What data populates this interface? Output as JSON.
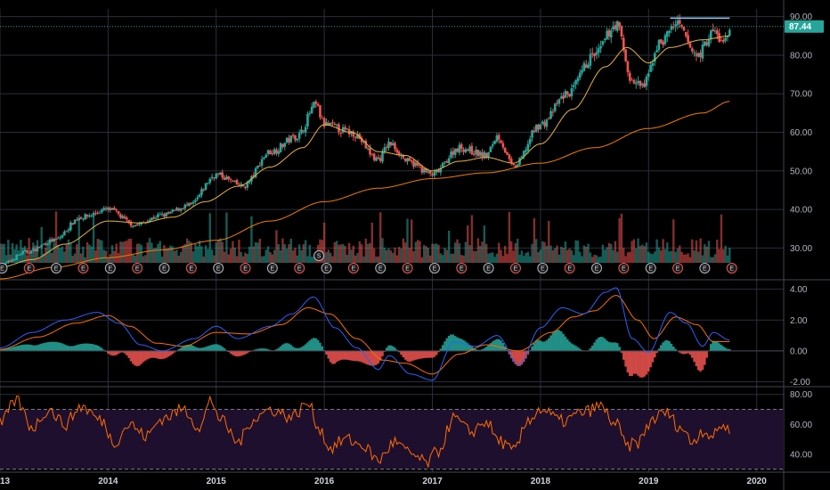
{
  "chart_data": [
    {
      "type": "candlestick",
      "panel": "price",
      "x_range": [
        2013.0,
        2020.25
      ],
      "ylim": [
        22,
        92
      ],
      "y_ticks": [
        "30.00",
        "40.00",
        "50.00",
        "60.00",
        "70.00",
        "80.00",
        "90.00"
      ],
      "y_tick_values": [
        30,
        40,
        50,
        60,
        70,
        80,
        90
      ],
      "last_price": 87.44,
      "last_price_label": "87.44",
      "resistance_line": {
        "y": 89.6,
        "x_start": 2019.2,
        "x_end": 2019.75
      },
      "price_anchors": [
        [
          2013.0,
          25.5
        ],
        [
          2013.25,
          29
        ],
        [
          2013.5,
          32
        ],
        [
          2013.75,
          38
        ],
        [
          2014.0,
          40
        ],
        [
          2014.25,
          36
        ],
        [
          2014.5,
          38.5
        ],
        [
          2014.75,
          41
        ],
        [
          2015.0,
          49
        ],
        [
          2015.25,
          46
        ],
        [
          2015.5,
          55
        ],
        [
          2015.75,
          59
        ],
        [
          2015.92,
          67
        ],
        [
          2016.0,
          62
        ],
        [
          2016.25,
          60
        ],
        [
          2016.5,
          53
        ],
        [
          2016.6,
          57
        ],
        [
          2016.8,
          52
        ],
        [
          2017.0,
          49
        ],
        [
          2017.25,
          56
        ],
        [
          2017.5,
          54
        ],
        [
          2017.6,
          59
        ],
        [
          2017.75,
          51
        ],
        [
          2018.0,
          62
        ],
        [
          2018.25,
          70
        ],
        [
          2018.5,
          80
        ],
        [
          2018.7,
          88
        ],
        [
          2018.85,
          73
        ],
        [
          2018.95,
          72
        ],
        [
          2019.1,
          83
        ],
        [
          2019.25,
          88
        ],
        [
          2019.45,
          80
        ],
        [
          2019.6,
          86
        ],
        [
          2019.7,
          83
        ],
        [
          2019.75,
          87.44
        ]
      ],
      "sma_fast_anchors": [
        [
          2013.0,
          25
        ],
        [
          2013.3,
          27
        ],
        [
          2013.6,
          31
        ],
        [
          2014.0,
          37
        ],
        [
          2014.3,
          36.5
        ],
        [
          2014.6,
          38
        ],
        [
          2014.9,
          42
        ],
        [
          2015.2,
          46
        ],
        [
          2015.5,
          51
        ],
        [
          2015.8,
          56
        ],
        [
          2016.0,
          62
        ],
        [
          2016.25,
          60
        ],
        [
          2016.5,
          55
        ],
        [
          2016.75,
          54
        ],
        [
          2017.0,
          50
        ],
        [
          2017.25,
          52.5
        ],
        [
          2017.5,
          53.5
        ],
        [
          2017.75,
          52
        ],
        [
          2018.0,
          57
        ],
        [
          2018.3,
          66
        ],
        [
          2018.6,
          77
        ],
        [
          2018.8,
          82
        ],
        [
          2019.0,
          78
        ],
        [
          2019.2,
          82
        ],
        [
          2019.5,
          84
        ],
        [
          2019.75,
          85
        ]
      ],
      "sma_slow_anchors": [
        [
          2013.0,
          22
        ],
        [
          2013.5,
          25
        ],
        [
          2014.0,
          27.5
        ],
        [
          2014.5,
          29.5
        ],
        [
          2015.0,
          32
        ],
        [
          2015.5,
          37
        ],
        [
          2016.0,
          42
        ],
        [
          2016.5,
          45.5
        ],
        [
          2017.0,
          48
        ],
        [
          2017.5,
          49.5
        ],
        [
          2018.0,
          52
        ],
        [
          2018.5,
          56
        ],
        [
          2019.0,
          61
        ],
        [
          2019.5,
          65
        ],
        [
          2019.75,
          68
        ]
      ],
      "earnings_marker_dates": [
        2013.02,
        2013.27,
        2013.52,
        2013.77,
        2014.02,
        2014.27,
        2014.52,
        2014.77,
        2015.02,
        2015.27,
        2015.52,
        2015.77,
        2016.02,
        2016.27,
        2016.52,
        2016.77,
        2017.02,
        2017.27,
        2017.52,
        2017.77,
        2018.02,
        2018.27,
        2018.52,
        2018.77,
        2019.02,
        2019.27,
        2019.52,
        2019.77
      ],
      "earnings_marker_label": "E",
      "split_marker": {
        "x": 2015.95,
        "label": "S"
      }
    },
    {
      "type": "macd",
      "panel": "macd",
      "ylim": [
        -2.2,
        4.5
      ],
      "y_ticks": [
        "4.00",
        "2.00",
        "0.00",
        "-2.00"
      ],
      "y_tick_values": [
        4,
        2,
        0,
        -2
      ],
      "macd_anchors": [
        [
          2013.0,
          0.2
        ],
        [
          2013.3,
          1.2
        ],
        [
          2013.6,
          2.0
        ],
        [
          2013.9,
          2.5
        ],
        [
          2014.1,
          1.8
        ],
        [
          2014.3,
          0.4
        ],
        [
          2014.5,
          0.0
        ],
        [
          2014.8,
          0.8
        ],
        [
          2015.0,
          1.6
        ],
        [
          2015.2,
          0.8
        ],
        [
          2015.5,
          1.6
        ],
        [
          2015.7,
          2.4
        ],
        [
          2015.9,
          3.5
        ],
        [
          2016.1,
          1.5
        ],
        [
          2016.3,
          0.2
        ],
        [
          2016.5,
          -1.2
        ],
        [
          2016.6,
          -0.3
        ],
        [
          2016.8,
          -1.5
        ],
        [
          2017.0,
          -1.9
        ],
        [
          2017.2,
          0.6
        ],
        [
          2017.4,
          0.3
        ],
        [
          2017.6,
          1.0
        ],
        [
          2017.8,
          -0.9
        ],
        [
          2018.0,
          1.5
        ],
        [
          2018.2,
          2.8
        ],
        [
          2018.4,
          2.4
        ],
        [
          2018.6,
          3.8
        ],
        [
          2018.7,
          4.1
        ],
        [
          2018.85,
          0.8
        ],
        [
          2019.0,
          -0.1
        ],
        [
          2019.2,
          2.5
        ],
        [
          2019.35,
          1.8
        ],
        [
          2019.5,
          0.3
        ],
        [
          2019.6,
          1.2
        ],
        [
          2019.75,
          0.7
        ]
      ],
      "signal_anchors": [
        [
          2013.0,
          0.1
        ],
        [
          2013.35,
          0.9
        ],
        [
          2013.7,
          1.8
        ],
        [
          2014.0,
          2.3
        ],
        [
          2014.2,
          1.6
        ],
        [
          2014.45,
          0.5
        ],
        [
          2014.7,
          0.3
        ],
        [
          2015.0,
          1.2
        ],
        [
          2015.3,
          1.1
        ],
        [
          2015.6,
          1.7
        ],
        [
          2015.85,
          2.8
        ],
        [
          2016.05,
          2.4
        ],
        [
          2016.3,
          0.8
        ],
        [
          2016.55,
          -0.6
        ],
        [
          2016.75,
          -0.8
        ],
        [
          2017.0,
          -1.5
        ],
        [
          2017.25,
          -0.2
        ],
        [
          2017.5,
          0.4
        ],
        [
          2017.8,
          0.0
        ],
        [
          2018.1,
          1.2
        ],
        [
          2018.3,
          2.2
        ],
        [
          2018.5,
          2.6
        ],
        [
          2018.7,
          3.6
        ],
        [
          2018.9,
          2.0
        ],
        [
          2019.05,
          0.8
        ],
        [
          2019.25,
          2.2
        ],
        [
          2019.45,
          1.7
        ],
        [
          2019.6,
          0.6
        ],
        [
          2019.75,
          0.6
        ]
      ]
    },
    {
      "type": "rsi",
      "panel": "rsi",
      "ylim": [
        28,
        84
      ],
      "y_ticks": [
        "80.00",
        "60.00",
        "40.00"
      ],
      "y_tick_values": [
        80,
        60,
        40
      ],
      "upper_band": 70,
      "lower_band": 30,
      "rsi_anchors": [
        [
          2013.0,
          60
        ],
        [
          2013.15,
          76
        ],
        [
          2013.3,
          58
        ],
        [
          2013.45,
          70
        ],
        [
          2013.6,
          60
        ],
        [
          2013.75,
          72
        ],
        [
          2013.95,
          62
        ],
        [
          2014.05,
          48
        ],
        [
          2014.2,
          60
        ],
        [
          2014.35,
          52
        ],
        [
          2014.5,
          64
        ],
        [
          2014.7,
          70
        ],
        [
          2014.85,
          58
        ],
        [
          2014.95,
          76
        ],
        [
          2015.05,
          62
        ],
        [
          2015.2,
          48
        ],
        [
          2015.35,
          64
        ],
        [
          2015.5,
          70
        ],
        [
          2015.7,
          65
        ],
        [
          2015.85,
          74
        ],
        [
          2015.95,
          58
        ],
        [
          2016.05,
          44
        ],
        [
          2016.2,
          50
        ],
        [
          2016.35,
          46
        ],
        [
          2016.5,
          36
        ],
        [
          2016.65,
          48
        ],
        [
          2016.8,
          40
        ],
        [
          2016.95,
          34
        ],
        [
          2017.05,
          42
        ],
        [
          2017.2,
          64
        ],
        [
          2017.35,
          55
        ],
        [
          2017.5,
          62
        ],
        [
          2017.6,
          50
        ],
        [
          2017.75,
          42
        ],
        [
          2017.9,
          64
        ],
        [
          2018.0,
          70
        ],
        [
          2018.2,
          62
        ],
        [
          2018.4,
          68
        ],
        [
          2018.55,
          72
        ],
        [
          2018.7,
          60
        ],
        [
          2018.8,
          45
        ],
        [
          2018.9,
          48
        ],
        [
          2019.05,
          64
        ],
        [
          2019.15,
          68
        ],
        [
          2019.3,
          58
        ],
        [
          2019.4,
          48
        ],
        [
          2019.5,
          56
        ],
        [
          2019.6,
          52
        ],
        [
          2019.68,
          60
        ],
        [
          2019.75,
          56
        ]
      ]
    }
  ],
  "x_axis_labels": [
    "13",
    "2014",
    "2015",
    "2016",
    "2017",
    "2018",
    "2019",
    "2020"
  ],
  "x_axis_values": [
    2013.0,
    2014.0,
    2015.0,
    2016.0,
    2017.0,
    2018.0,
    2019.0,
    2020.0
  ],
  "colors": {
    "background": "#000000",
    "grid": "#2a2e39",
    "up_candle": "#26a69a",
    "down_candle": "#ef5350",
    "sma_fast": "#e8b341",
    "sma_slow": "#f57c00",
    "macd_line": "#2962ff",
    "signal_line": "#ff6d00",
    "hist_up": "#26a69a",
    "hist_down": "#ef5350",
    "rsi_line": "#ff6d00",
    "rsi_band_fill": "#1f0f2e",
    "last_price_tag": "#26a69a",
    "resistance": "#90caf9",
    "axis_text": "#b2b5be"
  }
}
